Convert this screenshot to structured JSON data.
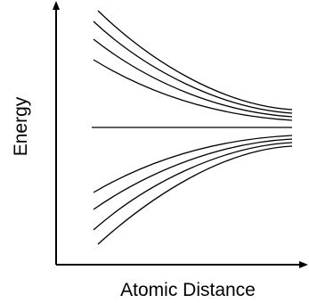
{
  "diagram": {
    "xlabel": "Atomic Distance",
    "ylabel": "Energy",
    "upper_curve_count": 4,
    "center_line_count": 1,
    "lower_curve_count": 4,
    "colors": {
      "line": "#000000",
      "background": "#ffffff"
    }
  }
}
